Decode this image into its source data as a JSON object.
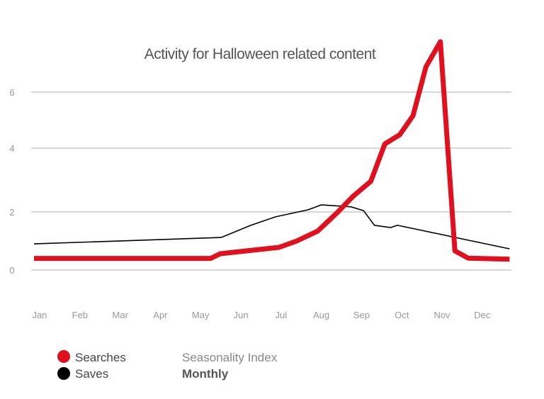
{
  "chart_data": {
    "type": "line",
    "title": "Activity for Halloween related content",
    "xlabel": "",
    "ylabel": "",
    "x_tick_labels": [
      "Jan",
      "Feb",
      "Mar",
      "Apr",
      "May",
      "Jun",
      "Jul",
      "Aug",
      "Sep",
      "Oct",
      "Nov",
      "Dec"
    ],
    "y_ticks": [
      0,
      2,
      4,
      6
    ],
    "y_tick_labels": [
      "0",
      "2",
      "4",
      "6"
    ],
    "grid": "horizontal",
    "legend_placement": "bottom-left",
    "series": [
      {
        "name": "Searches",
        "color": "#e0101f",
        "x": [
          0.86,
          5.25,
          5.49,
          6.95,
          7.39,
          7.91,
          8.4,
          8.79,
          9.23,
          9.58,
          9.95,
          10.28,
          10.6,
          10.96,
          11.32,
          11.65,
          12.68
        ],
        "y": [
          0.4,
          0.4,
          0.56,
          0.78,
          1.0,
          1.34,
          1.98,
          2.49,
          2.96,
          4.15,
          4.48,
          5.16,
          6.9,
          7.8,
          0.66,
          0.41,
          0.37
        ]
      },
      {
        "name": "Saves",
        "color": "#000000",
        "x": [
          0.86,
          5.51,
          6.25,
          6.86,
          7.68,
          8.0,
          8.74,
          9.05,
          9.32,
          9.72,
          9.89,
          12.68
        ],
        "y": [
          0.9,
          1.12,
          1.54,
          1.83,
          2.07,
          2.22,
          2.16,
          2.04,
          1.54,
          1.46,
          1.54,
          0.73
        ]
      }
    ]
  },
  "legend": {
    "searches": "Searches",
    "saves": "Saves",
    "metric": "Seasonality Index",
    "period": "Monthly"
  }
}
